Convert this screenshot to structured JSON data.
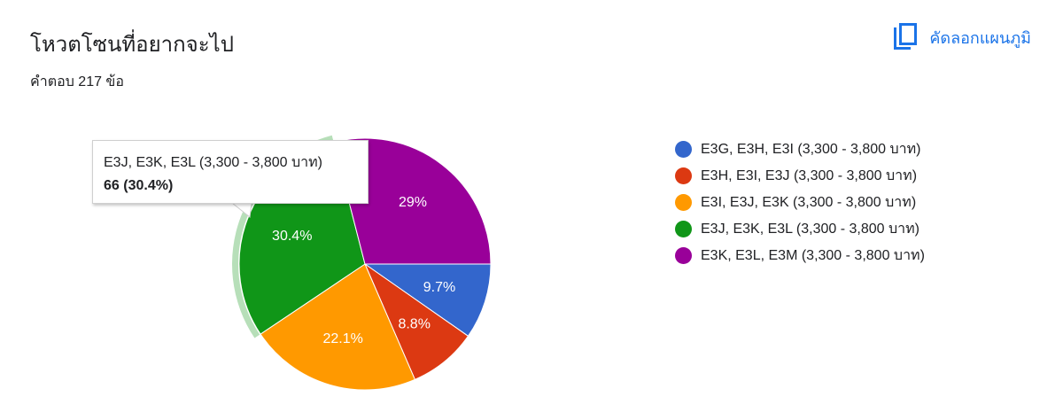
{
  "header": {
    "title": "โหวตโซนที่อยากจะไป",
    "subtitle": "คำตอบ 217 ข้อ",
    "copy_label": "คัดลอกแผนภูมิ"
  },
  "tooltip": {
    "label": "E3J, E3K, E3L (3,300 - 3,800 บาท)",
    "value": "66 (30.4%)"
  },
  "chart_data": {
    "type": "pie",
    "total_responses": 217,
    "highlighted": "E3J, E3K, E3L (3,300 - 3,800 บาท)",
    "legend_position": "right",
    "slices": [
      {
        "label": "E3G, E3H, E3I (3,300 - 3,800 บาท)",
        "percent": 9.7,
        "percent_label": "9.7%",
        "color": "#3366cc"
      },
      {
        "label": "E3H, E3I, E3J (3,300 - 3,800 บาท)",
        "percent": 8.8,
        "percent_label": "8.8%",
        "color": "#dc3912"
      },
      {
        "label": "E3I, E3J, E3K (3,300 - 3,800 บาท)",
        "percent": 22.1,
        "percent_label": "22.1%",
        "color": "#ff9900"
      },
      {
        "label": "E3J, E3K, E3L (3,300 - 3,800 บาท)",
        "percent": 30.4,
        "percent_label": "30.4%",
        "color": "#109618"
      },
      {
        "label": "E3K, E3L, E3M (3,300 - 3,800 บาท)",
        "percent": 29.0,
        "percent_label": "29%",
        "color": "#990099"
      }
    ]
  }
}
